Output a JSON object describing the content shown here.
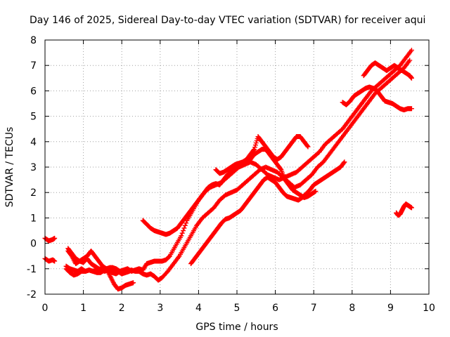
{
  "chart_data": {
    "type": "scatter",
    "title": "Day 146 of 2025, Sidereal Day-to-day VTEC variation (SDTVAR) for receiver aqui",
    "xlabel": "GPS time / hours",
    "ylabel": "SDTVAR / TECUs",
    "xlim": [
      0,
      10
    ],
    "ylim": [
      -2,
      8
    ],
    "xticks": [
      "0",
      "1",
      "2",
      "3",
      "4",
      "5",
      "6",
      "7",
      "8",
      "9",
      "10"
    ],
    "yticks": [
      "-2",
      "-1",
      "0",
      "1",
      "2",
      "3",
      "4",
      "5",
      "6",
      "7",
      "8"
    ],
    "grid": true,
    "marker": "plus",
    "color": "#ff0000",
    "series": [
      {
        "x": [
          0.0,
          0.1,
          0.2,
          0.25
        ],
        "y": [
          0.2,
          0.1,
          0.15,
          0.2
        ]
      },
      {
        "x": [
          0.0,
          0.1,
          0.2,
          0.25
        ],
        "y": [
          -0.6,
          -0.7,
          -0.65,
          -0.7
        ]
      },
      {
        "x": [
          0.55,
          0.65,
          0.75,
          0.85,
          0.95,
          1.05,
          1.15,
          1.25,
          1.35,
          1.45,
          1.55,
          1.65,
          1.75,
          1.85,
          1.95,
          2.05,
          2.15,
          2.25,
          2.35,
          2.45,
          2.55,
          2.65,
          2.75,
          2.85,
          2.95,
          3.05,
          3.15,
          3.25,
          3.4,
          3.55,
          3.7,
          3.85,
          4.0,
          4.15,
          4.3,
          4.45,
          4.6,
          4.75,
          4.9,
          5.05,
          5.2,
          5.35,
          5.5,
          5.65,
          5.8,
          5.95,
          6.1,
          6.25,
          6.4,
          6.55,
          6.7,
          6.85,
          7.0,
          7.15,
          7.3,
          7.45,
          7.6,
          7.75,
          7.9,
          8.05,
          8.2,
          8.35,
          8.5,
          8.65,
          8.8,
          8.95,
          9.1,
          9.25,
          9.4,
          9.55
        ],
        "y": [
          -0.9,
          -1.0,
          -1.05,
          -1.1,
          -1.0,
          -1.1,
          -1.05,
          -1.1,
          -1.05,
          -1.0,
          -1.1,
          -1.05,
          -1.15,
          -1.2,
          -1.1,
          -1.05,
          -1.0,
          -1.1,
          -1.05,
          -1.0,
          -1.05,
          -0.8,
          -0.75,
          -0.7,
          -0.7,
          -0.7,
          -0.65,
          -0.5,
          -0.1,
          0.3,
          0.9,
          1.3,
          1.7,
          2.0,
          2.2,
          2.3,
          2.4,
          2.6,
          2.8,
          3.0,
          3.1,
          3.2,
          3.1,
          2.9,
          2.7,
          2.6,
          2.5,
          2.6,
          2.7,
          2.8,
          3.0,
          3.2,
          3.4,
          3.6,
          3.9,
          4.1,
          4.3,
          4.5,
          4.8,
          5.1,
          5.4,
          5.7,
          6.0,
          6.2,
          6.4,
          6.6,
          6.8,
          7.0,
          7.3,
          7.6
        ]
      },
      {
        "x": [
          0.55,
          0.65,
          0.75,
          0.85,
          0.95,
          1.05,
          1.15,
          1.25,
          1.35,
          1.45,
          1.55,
          1.65,
          1.75,
          1.85,
          1.95,
          2.05,
          2.15,
          2.25,
          2.35,
          2.45,
          2.55,
          2.65,
          2.75,
          2.85,
          2.95,
          3.05,
          3.2,
          3.35,
          3.5,
          3.65,
          3.8,
          3.95,
          4.1,
          4.25,
          4.4,
          4.55,
          4.7,
          4.85,
          5.0,
          5.15,
          5.3,
          5.45,
          5.6,
          5.75,
          5.9,
          6.05,
          6.2,
          6.35,
          6.5,
          6.65,
          6.8,
          6.95,
          7.1,
          7.25,
          7.4,
          7.55,
          7.7,
          7.85,
          8.0,
          8.15,
          8.3,
          8.45,
          8.6,
          8.75,
          8.9,
          9.05,
          9.2,
          9.35,
          9.5
        ],
        "y": [
          -1.0,
          -1.15,
          -1.25,
          -1.2,
          -1.1,
          -1.1,
          -1.05,
          -1.1,
          -1.15,
          -1.15,
          -1.05,
          -1.0,
          -0.95,
          -1.0,
          -1.1,
          -1.15,
          -1.1,
          -1.05,
          -1.1,
          -1.1,
          -1.2,
          -1.25,
          -1.2,
          -1.3,
          -1.45,
          -1.35,
          -1.1,
          -0.8,
          -0.5,
          -0.1,
          0.3,
          0.7,
          1.0,
          1.2,
          1.4,
          1.7,
          1.9,
          2.0,
          2.1,
          2.3,
          2.5,
          2.7,
          2.9,
          3.0,
          2.9,
          2.8,
          2.6,
          2.4,
          2.2,
          2.3,
          2.5,
          2.7,
          3.0,
          3.2,
          3.5,
          3.8,
          4.1,
          4.4,
          4.7,
          5.0,
          5.3,
          5.6,
          5.9,
          6.1,
          6.3,
          6.5,
          6.7,
          6.9,
          7.2
        ]
      },
      {
        "x": [
          0.6,
          0.7,
          0.8,
          0.9,
          1.0,
          1.1,
          1.2,
          1.3,
          1.4,
          1.5,
          1.6,
          1.7,
          1.8,
          1.9,
          2.0,
          2.1,
          2.2,
          2.3
        ],
        "y": [
          -0.2,
          -0.4,
          -0.6,
          -0.7,
          -0.6,
          -0.5,
          -0.3,
          -0.5,
          -0.7,
          -0.9,
          -1.0,
          -1.3,
          -1.6,
          -1.8,
          -1.75,
          -1.65,
          -1.6,
          -1.55
        ]
      },
      {
        "x": [
          0.6,
          0.7,
          0.8,
          0.9,
          1.0,
          1.1,
          1.2,
          1.3,
          1.4,
          1.5,
          1.6,
          1.7,
          1.8,
          1.9,
          2.0,
          2.1,
          2.2
        ],
        "y": [
          -0.3,
          -0.5,
          -0.8,
          -0.7,
          -0.75,
          -0.6,
          -0.8,
          -0.9,
          -1.0,
          -1.1,
          -1.0,
          -0.95,
          -1.0,
          -1.1,
          -1.2,
          -1.15,
          -1.1
        ]
      },
      {
        "x": [
          2.55,
          2.65,
          2.75,
          2.85,
          2.95,
          3.05,
          3.15,
          3.25,
          3.35,
          3.45,
          3.55,
          3.65,
          3.75,
          3.85,
          3.95,
          4.05,
          4.15,
          4.25,
          4.35,
          4.45,
          4.55,
          4.65,
          4.75,
          4.85,
          4.95,
          5.05,
          5.15,
          5.25,
          5.35,
          5.45,
          5.55,
          5.65,
          5.75,
          5.85,
          5.95,
          6.05,
          6.15,
          6.25,
          6.35,
          6.45,
          6.55,
          6.65,
          6.75,
          6.85,
          6.95,
          7.05
        ],
        "y": [
          0.9,
          0.75,
          0.6,
          0.5,
          0.45,
          0.4,
          0.35,
          0.4,
          0.5,
          0.6,
          0.8,
          1.0,
          1.2,
          1.4,
          1.6,
          1.8,
          2.0,
          2.2,
          2.3,
          2.35,
          2.3,
          2.5,
          2.7,
          2.85,
          2.95,
          3.0,
          3.1,
          3.2,
          3.3,
          3.5,
          3.6,
          3.7,
          3.7,
          3.5,
          3.3,
          3.1,
          2.9,
          2.5,
          2.3,
          2.1,
          2.0,
          1.9,
          1.8,
          1.85,
          1.95,
          2.05
        ]
      },
      {
        "x": [
          3.8,
          3.9,
          4.0,
          4.1,
          4.2,
          4.3,
          4.4,
          4.5,
          4.6,
          4.7,
          4.8,
          4.9,
          5.0,
          5.1,
          5.2,
          5.3,
          5.4,
          5.5,
          5.6,
          5.7,
          5.8,
          5.9,
          6.0,
          6.1,
          6.2,
          6.3,
          6.4,
          6.5,
          6.6,
          6.7,
          6.8,
          6.9,
          7.0,
          7.1,
          7.2,
          7.3,
          7.4,
          7.5,
          7.6,
          7.7,
          7.8
        ],
        "y": [
          -0.8,
          -0.6,
          -0.4,
          -0.2,
          0.0,
          0.2,
          0.4,
          0.6,
          0.8,
          0.95,
          1.0,
          1.1,
          1.2,
          1.3,
          1.5,
          1.7,
          1.9,
          2.1,
          2.3,
          2.5,
          2.6,
          2.5,
          2.4,
          2.2,
          2.0,
          1.85,
          1.8,
          1.75,
          1.7,
          1.8,
          1.95,
          2.1,
          2.3,
          2.4,
          2.5,
          2.6,
          2.7,
          2.8,
          2.9,
          3.0,
          3.2
        ]
      },
      {
        "x": [
          4.45,
          4.55,
          4.65,
          4.75,
          4.85,
          4.95,
          5.05,
          5.15,
          5.25,
          5.35,
          5.45,
          5.55,
          5.65,
          5.75,
          5.85,
          5.95,
          6.05,
          6.15,
          6.25,
          6.35,
          6.45,
          6.55,
          6.65,
          6.75,
          6.85
        ],
        "y": [
          2.9,
          2.75,
          2.8,
          2.9,
          3.0,
          3.1,
          3.15,
          3.2,
          3.3,
          3.5,
          3.7,
          4.2,
          4.0,
          3.8,
          3.6,
          3.4,
          3.3,
          3.4,
          3.6,
          3.8,
          4.0,
          4.2,
          4.2,
          4.0,
          3.8
        ]
      },
      {
        "x": [
          7.75,
          7.85,
          7.95,
          8.05,
          8.15,
          8.25,
          8.35,
          8.45,
          8.55,
          8.65,
          8.75,
          8.85,
          8.95,
          9.05,
          9.15,
          9.25,
          9.35,
          9.45,
          9.55
        ],
        "y": [
          5.55,
          5.45,
          5.6,
          5.8,
          5.9,
          6.0,
          6.1,
          6.15,
          6.1,
          6.0,
          5.8,
          5.6,
          5.55,
          5.5,
          5.4,
          5.3,
          5.25,
          5.3,
          5.3
        ]
      },
      {
        "x": [
          8.3,
          8.4,
          8.5,
          8.6,
          8.7,
          8.8,
          8.9,
          9.0,
          9.1,
          9.2,
          9.3,
          9.4,
          9.5,
          9.55
        ],
        "y": [
          6.6,
          6.8,
          7.0,
          7.1,
          7.0,
          6.9,
          6.8,
          6.9,
          7.0,
          6.9,
          6.8,
          6.7,
          6.6,
          6.5
        ]
      },
      {
        "x": [
          9.15,
          9.2,
          9.25,
          9.3,
          9.35,
          9.4,
          9.45,
          9.5,
          9.55
        ],
        "y": [
          1.2,
          1.1,
          1.15,
          1.3,
          1.45,
          1.55,
          1.5,
          1.45,
          1.4
        ]
      }
    ]
  }
}
